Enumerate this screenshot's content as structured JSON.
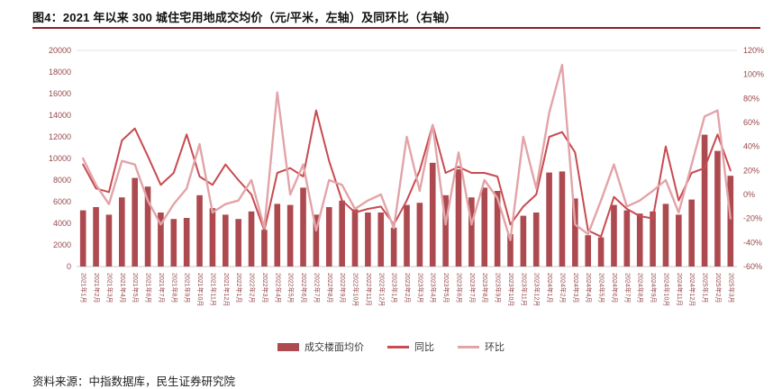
{
  "page": {
    "title": "图4：2021 年以来 300 城住宅用地成交均价（元/平米，左轴）及同环比（右轴）",
    "source": "资料来源：中指数据库，民生证券研究院"
  },
  "colors": {
    "title_rule": "#8A2026",
    "axis_text": "#96494D",
    "plot_top_border": "#E3E3E3",
    "plot_bottom_axis": "#C9C9C9",
    "legend_text": "#3a3a3a"
  },
  "chart_data": {
    "type": "bar",
    "title": "2021 年以来 300 城住宅用地成交均价（元/平米，左轴）及同环比（右轴）",
    "xlabel": "",
    "ylabel_left": "元/平米",
    "ylabel_right": "%",
    "legend_position": "bottom",
    "grid": false,
    "left_axis": {
      "min": 0,
      "max": 20000,
      "step": 2000
    },
    "right_axis": {
      "min": -60,
      "max": 120,
      "step": 20,
      "suffix": "%"
    },
    "categories": [
      "2021年1月",
      "2021年2月",
      "2021年3月",
      "2021年4月",
      "2021年5月",
      "2021年6月",
      "2021年7月",
      "2021年8月",
      "2021年9月",
      "2021年10月",
      "2021年11月",
      "2021年12月",
      "2022年1月",
      "2022年2月",
      "2022年3月",
      "2022年4月",
      "2022年5月",
      "2022年6月",
      "2022年7月",
      "2022年8月",
      "2022年9月",
      "2022年10月",
      "2022年11月",
      "2022年12月",
      "2023年1月",
      "2023年2月",
      "2023年3月",
      "2023年4月",
      "2023年5月",
      "2023年6月",
      "2023年7月",
      "2023年8月",
      "2023年9月",
      "2023年10月",
      "2023年11月",
      "2023年12月",
      "2024年1月",
      "2024年2月",
      "2024年3月",
      "2024年4月",
      "2024年5月",
      "2024年6月",
      "2024年7月",
      "2024年8月",
      "2024年9月",
      "2024年10月",
      "2024年11月",
      "2024年12月",
      "2025年1月",
      "2025年2月",
      "2025年3月"
    ],
    "series": [
      {
        "name": "成交楼面均价",
        "type": "bar",
        "axis": "left",
        "color": "#AD4A50",
        "values": [
          5200,
          5500,
          4800,
          6400,
          8200,
          7400,
          5000,
          4400,
          4500,
          6600,
          5400,
          4800,
          4400,
          5100,
          3400,
          5800,
          5700,
          7300,
          4800,
          5500,
          6100,
          5300,
          5000,
          5000,
          3600,
          5700,
          5900,
          9600,
          6600,
          9000,
          6400,
          7300,
          7000,
          3000,
          4700,
          5000,
          8700,
          8800,
          6300,
          2900,
          2700,
          5700,
          5200,
          4900,
          5100,
          5800,
          4800,
          6200,
          12200,
          10700,
          8400
        ]
      },
      {
        "name": "同比",
        "type": "line",
        "axis": "right",
        "color": "#C84B50",
        "values": [
          25,
          5,
          2,
          45,
          55,
          32,
          8,
          18,
          50,
          15,
          8,
          25,
          12,
          0,
          -30,
          18,
          22,
          15,
          70,
          28,
          -5,
          -15,
          -12,
          -10,
          -25,
          -5,
          20,
          58,
          18,
          23,
          18,
          18,
          15,
          -25,
          -10,
          0,
          48,
          52,
          35,
          -30,
          -35,
          -2,
          -12,
          -18,
          -20,
          40,
          -5,
          18,
          22,
          50,
          20
        ]
      },
      {
        "name": "环比",
        "type": "line",
        "axis": "right",
        "color": "#E2A4A8",
        "values": [
          30,
          8,
          -8,
          28,
          25,
          -5,
          -25,
          -8,
          5,
          42,
          -15,
          -8,
          -5,
          12,
          -28,
          85,
          0,
          25,
          -30,
          12,
          8,
          -12,
          -5,
          0,
          -28,
          48,
          3,
          58,
          -25,
          35,
          -25,
          12,
          -3,
          -38,
          48,
          5,
          68,
          108,
          -25,
          -33,
          -5,
          25,
          -10,
          -5,
          3,
          12,
          -15,
          25,
          65,
          70,
          -20
        ]
      }
    ]
  }
}
